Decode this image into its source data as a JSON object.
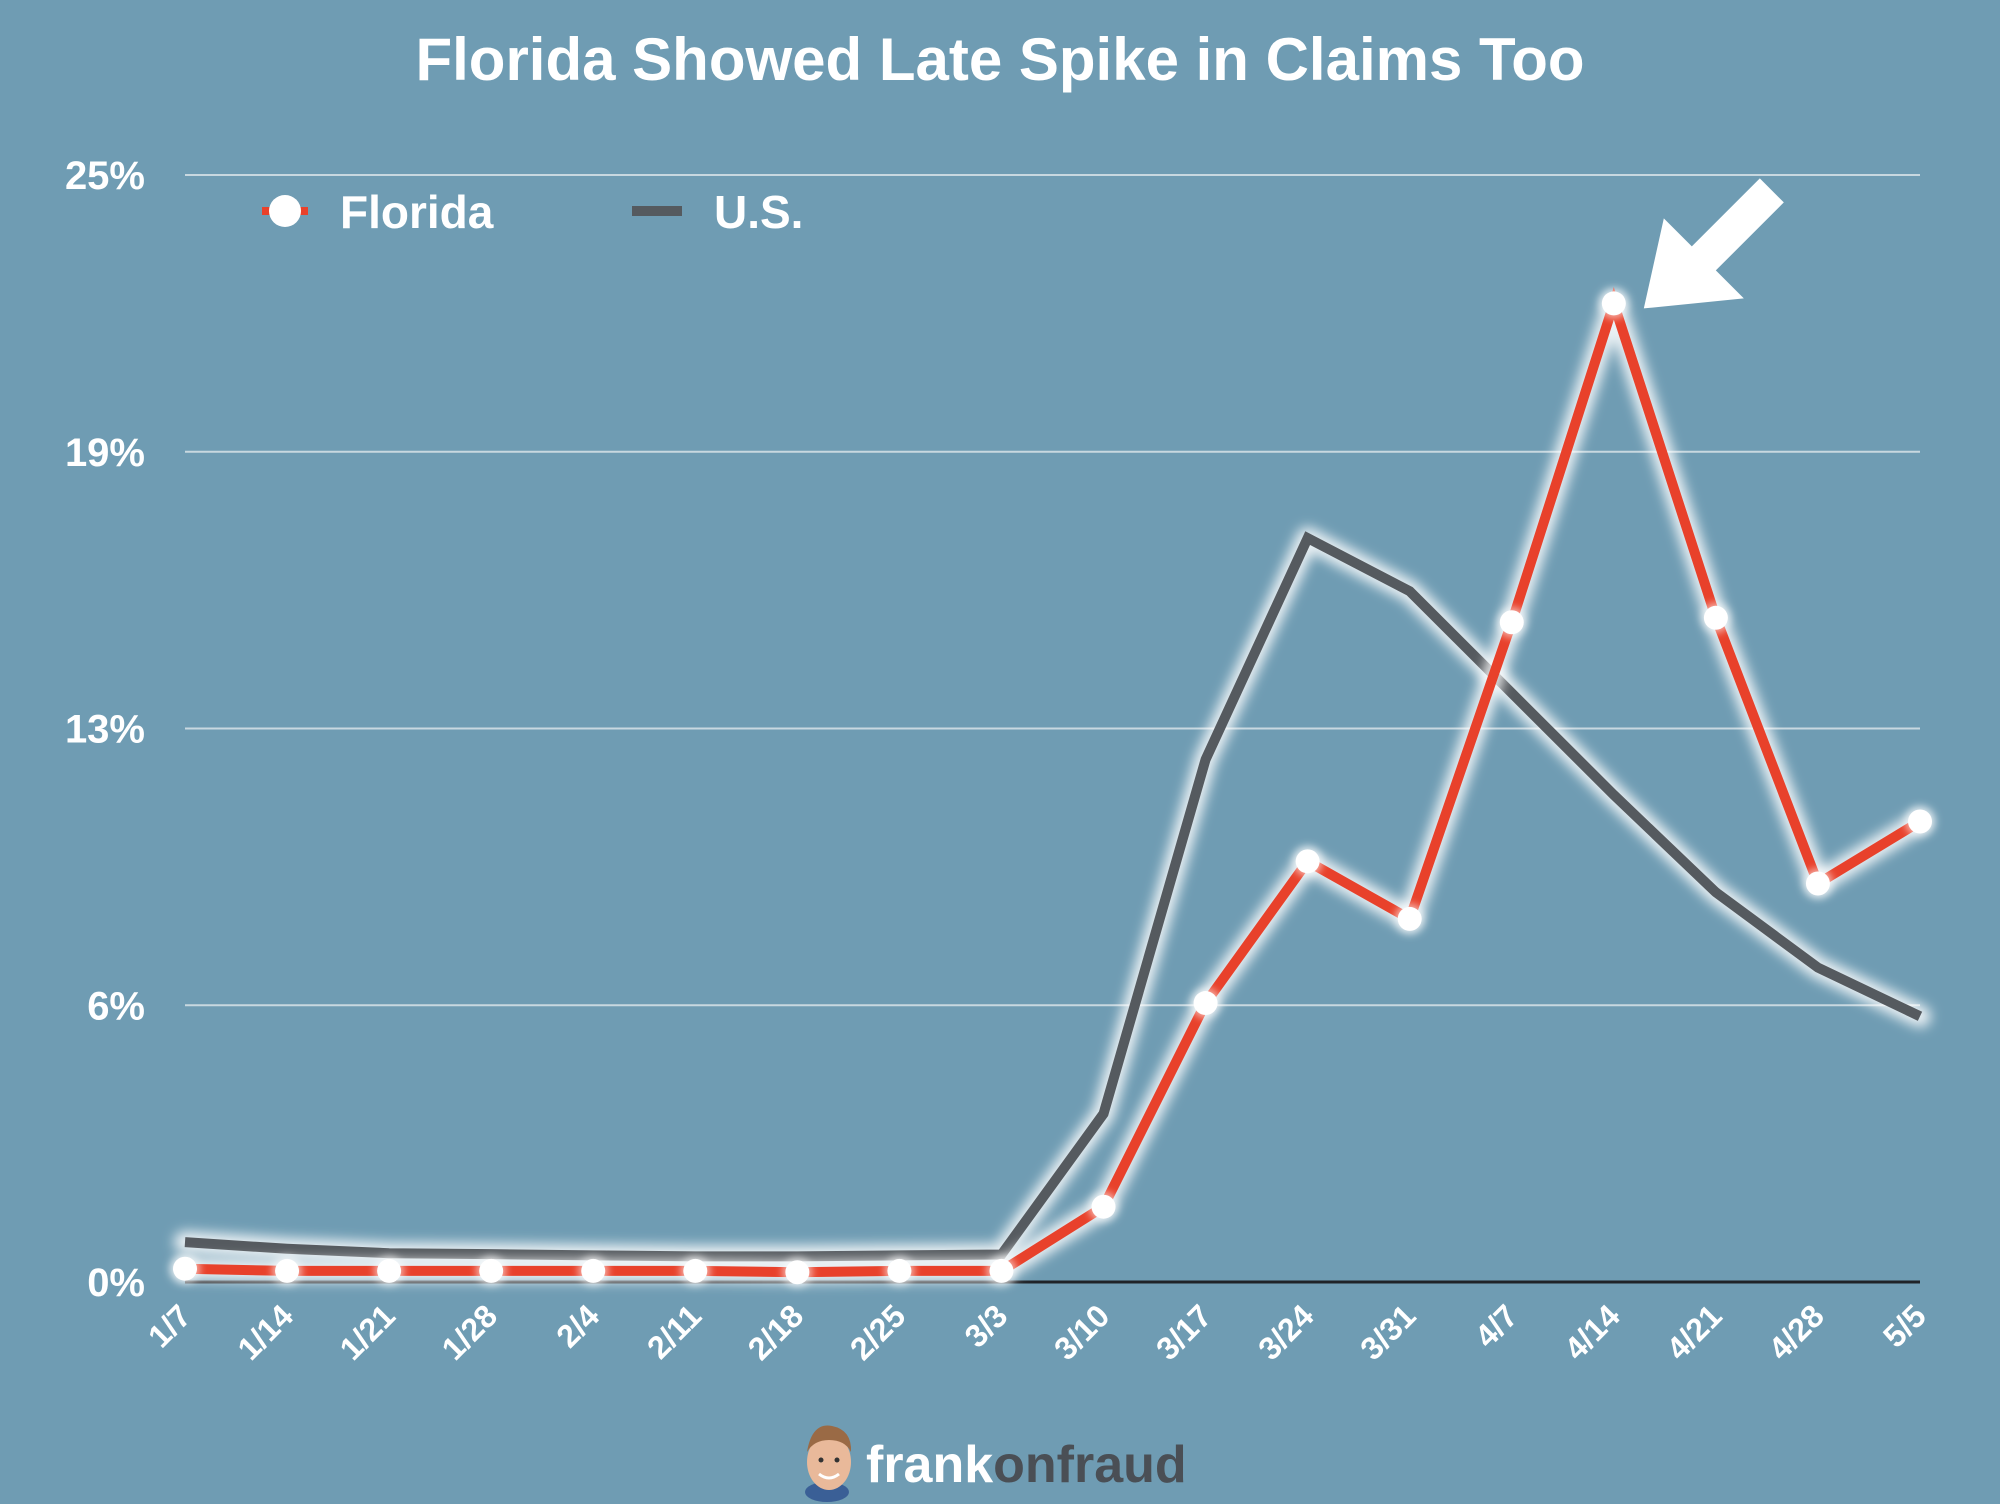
{
  "chart_data": {
    "type": "line",
    "title": "Florida Showed Late Spike in Claims Too",
    "xlabel": "",
    "ylabel": "",
    "categories": [
      "1/7",
      "1/14",
      "1/21",
      "1/28",
      "2/4",
      "2/11",
      "2/18",
      "2/25",
      "3/3",
      "3/10",
      "3/17",
      "3/24",
      "3/31",
      "4/7",
      "4/14",
      "4/21",
      "4/28",
      "5/5"
    ],
    "yticks": [
      "0%",
      "6%",
      "13%",
      "19%",
      "25%"
    ],
    "ylim": [
      0,
      25
    ],
    "grid": true,
    "legend_position": "top-left",
    "series": [
      {
        "name": "Florida",
        "color": "#e8412b",
        "markers": true,
        "values": [
          0.3,
          0.25,
          0.25,
          0.25,
          0.25,
          0.25,
          0.22,
          0.25,
          0.25,
          1.7,
          6.3,
          9.5,
          8.2,
          14.9,
          22.1,
          15.0,
          9.0,
          10.4
        ]
      },
      {
        "name": "U.S.",
        "color": "#555a5f",
        "markers": false,
        "values": [
          0.9,
          0.75,
          0.65,
          0.63,
          0.6,
          0.58,
          0.58,
          0.6,
          0.62,
          3.8,
          11.8,
          16.8,
          15.6,
          13.3,
          11.0,
          8.8,
          7.1,
          6.0
        ]
      }
    ],
    "annotation": {
      "type": "arrow",
      "target_category": "4/14",
      "target_series": "Florida",
      "color": "#ffffff"
    }
  },
  "branding": {
    "part1": "frank",
    "part2": "onfraud"
  }
}
